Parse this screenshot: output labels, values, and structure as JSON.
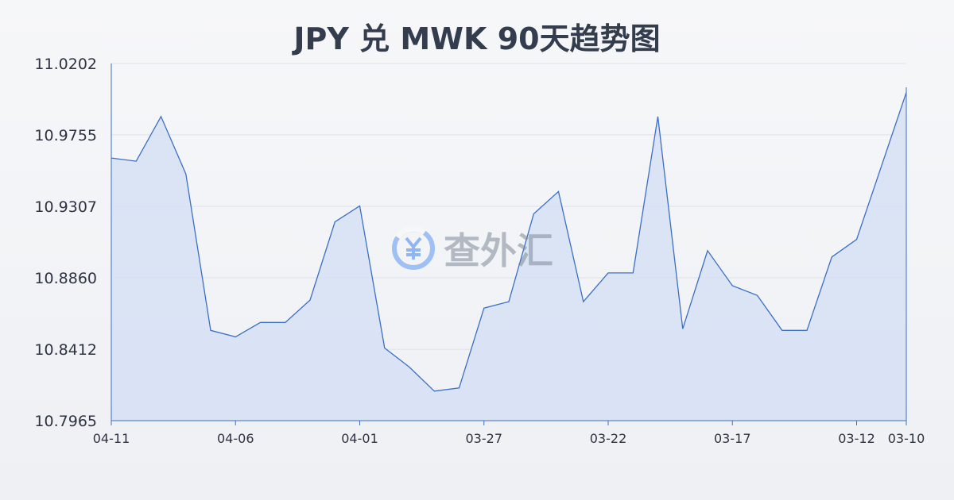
{
  "chart_data": {
    "type": "area",
    "title": "JPY 兑 MWK 90天趋势图",
    "y_ticks": [
      "11.0202",
      "10.9755",
      "10.9307",
      "10.8860",
      "10.8412",
      "10.7965"
    ],
    "ylim": [
      10.7965,
      11.0202
    ],
    "x_tick_labels": [
      "04-11",
      "04-06",
      "04-01",
      "03-27",
      "03-22",
      "03-17",
      "03-12",
      "03-10"
    ],
    "x_tick_index": [
      0,
      5,
      10,
      15,
      20,
      25,
      30,
      32
    ],
    "values": [
      10.961,
      10.959,
      10.987,
      10.951,
      10.853,
      10.849,
      10.858,
      10.858,
      10.872,
      10.921,
      10.931,
      10.842,
      10.83,
      10.815,
      10.817,
      10.867,
      10.871,
      10.926,
      10.94,
      10.871,
      10.889,
      10.889,
      10.987,
      10.854,
      10.903,
      10.881,
      10.875,
      10.853,
      10.853,
      10.899,
      10.91,
      10.956,
      11.002
    ],
    "grid": true,
    "color": "#3b6fc4",
    "fill_color": "#d6e0f5"
  },
  "watermark": {
    "text": "查外汇",
    "icon": "yen-exchange-icon"
  }
}
